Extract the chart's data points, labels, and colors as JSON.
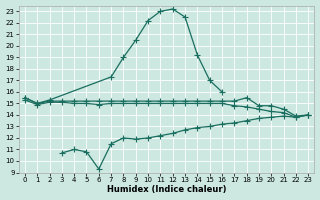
{
  "xlabel": "Humidex (Indice chaleur)",
  "background_color": "#cce8e0",
  "line_color": "#1a6e60",
  "xlim": [
    -0.5,
    23.5
  ],
  "ylim": [
    9,
    23.5
  ],
  "yticks": [
    9,
    10,
    11,
    12,
    13,
    14,
    15,
    16,
    17,
    18,
    19,
    20,
    21,
    22,
    23
  ],
  "xticks": [
    0,
    1,
    2,
    3,
    4,
    5,
    6,
    7,
    8,
    9,
    10,
    11,
    12,
    13,
    14,
    15,
    16,
    17,
    18,
    19,
    20,
    21,
    22,
    23
  ],
  "line1_x": [
    0,
    1,
    2,
    7,
    8,
    9,
    10,
    11,
    12,
    13,
    14,
    15,
    16
  ],
  "line1_y": [
    15.5,
    15.0,
    15.3,
    17.3,
    19.0,
    20.5,
    22.2,
    23.0,
    23.2,
    22.5,
    19.2,
    17.0,
    16.0
  ],
  "line2_x": [
    0,
    1,
    2,
    3,
    4,
    5,
    6,
    7,
    8,
    9,
    10,
    11,
    12,
    13,
    14,
    15,
    16,
    17,
    18,
    19,
    20,
    21,
    22,
    23
  ],
  "line2_y": [
    15.5,
    15.0,
    15.2,
    15.2,
    15.2,
    15.2,
    15.2,
    15.2,
    15.2,
    15.2,
    15.2,
    15.2,
    15.2,
    15.2,
    15.2,
    15.2,
    15.2,
    15.2,
    15.5,
    14.8,
    14.8,
    14.5,
    13.9,
    14.0
  ],
  "line3_x": [
    0,
    1,
    2,
    3,
    4,
    5,
    6,
    7,
    8,
    9,
    10,
    11,
    12,
    13,
    14,
    15,
    16,
    17,
    18,
    19,
    20,
    21,
    22,
    23
  ],
  "line3_y": [
    15.3,
    14.9,
    15.1,
    15.1,
    15.0,
    15.0,
    14.9,
    15.0,
    15.0,
    15.0,
    15.0,
    15.0,
    15.0,
    15.0,
    15.0,
    15.0,
    15.0,
    14.8,
    14.7,
    14.5,
    14.3,
    14.2,
    13.8,
    14.0
  ],
  "line4_x": [
    3,
    4,
    5,
    6,
    7,
    8,
    9,
    10,
    11,
    12,
    13,
    14,
    15,
    16,
    17,
    18,
    19,
    20,
    21,
    22,
    23
  ],
  "line4_y": [
    10.7,
    11.0,
    10.8,
    9.3,
    11.5,
    12.0,
    11.9,
    12.0,
    12.2,
    12.4,
    12.7,
    12.9,
    13.0,
    13.2,
    13.3,
    13.5,
    13.7,
    13.8,
    13.9,
    13.8,
    14.0
  ],
  "marker_size": 2.5,
  "linewidth": 0.9
}
